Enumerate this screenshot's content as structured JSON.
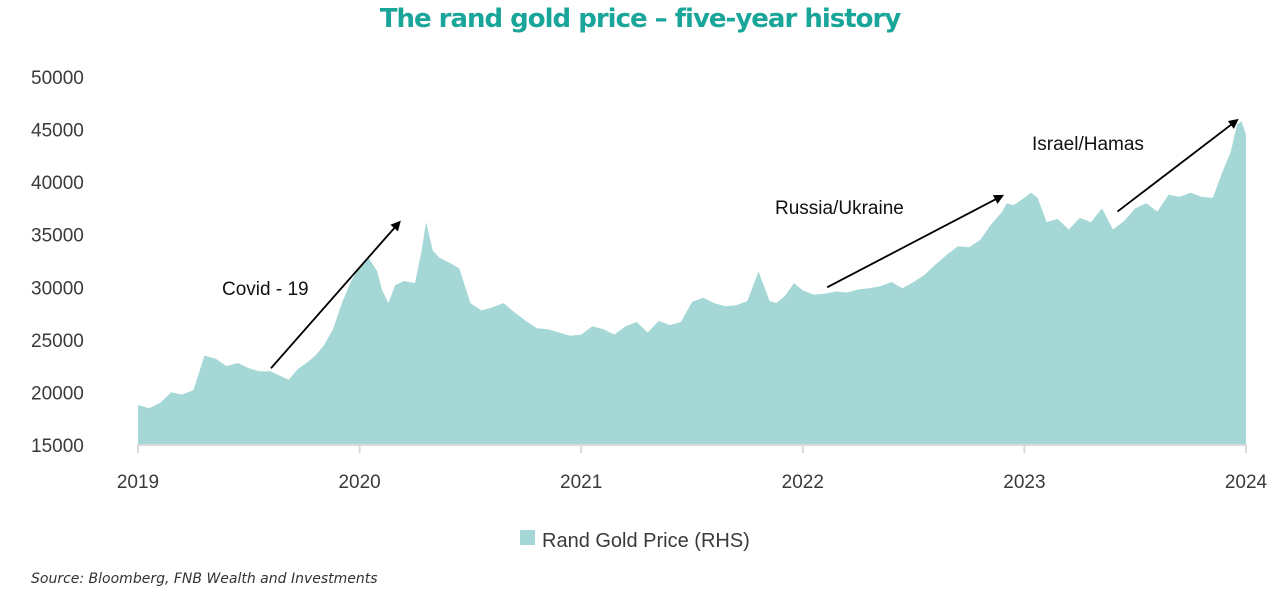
{
  "title": "The rand gold price – five-year history",
  "source": "Source: Bloomberg, FNB Wealth and Investments",
  "colors": {
    "title": "#1aa59a",
    "area": "#a4d7d6",
    "baseline": "#d9d9d9",
    "text": "#3a3a3a"
  },
  "chart_data": {
    "type": "area",
    "title": "The rand gold price – five-year history",
    "xlabel": "",
    "ylabel": "",
    "ylim": [
      15000,
      50000
    ],
    "xlim": [
      2019.0,
      2024.0
    ],
    "yticks": [
      "15000",
      "20000",
      "25000",
      "30000",
      "35000",
      "40000",
      "45000",
      "50000"
    ],
    "xticks": [
      "2019",
      "2020",
      "2021",
      "2022",
      "2023",
      "2024"
    ],
    "grid": false,
    "legend": "bottom-center",
    "series": [
      {
        "name": "Rand Gold Price (RHS)",
        "x": [
          2019.0,
          2019.05,
          2019.1,
          2019.15,
          2019.2,
          2019.25,
          2019.3,
          2019.35,
          2019.4,
          2019.45,
          2019.5,
          2019.55,
          2019.6,
          2019.65,
          2019.68,
          2019.72,
          2019.76,
          2019.8,
          2019.84,
          2019.88,
          2019.92,
          2019.96,
          2020.0,
          2020.04,
          2020.08,
          2020.1,
          2020.13,
          2020.16,
          2020.2,
          2020.25,
          2020.28,
          2020.3,
          2020.33,
          2020.36,
          2020.4,
          2020.45,
          2020.5,
          2020.55,
          2020.6,
          2020.65,
          2020.7,
          2020.75,
          2020.8,
          2020.85,
          2020.9,
          2020.95,
          2021.0,
          2021.05,
          2021.1,
          2021.15,
          2021.2,
          2021.25,
          2021.3,
          2021.35,
          2021.4,
          2021.45,
          2021.5,
          2021.55,
          2021.6,
          2021.65,
          2021.7,
          2021.75,
          2021.8,
          2021.85,
          2021.88,
          2021.92,
          2021.96,
          2022.0,
          2022.05,
          2022.1,
          2022.15,
          2022.2,
          2022.25,
          2022.3,
          2022.35,
          2022.4,
          2022.45,
          2022.5,
          2022.55,
          2022.6,
          2022.65,
          2022.7,
          2022.75,
          2022.8,
          2022.85,
          2022.9,
          2022.92,
          2022.95,
          2023.0,
          2023.03,
          2023.06,
          2023.1,
          2023.15,
          2023.2,
          2023.25,
          2023.3,
          2023.35,
          2023.4,
          2023.45,
          2023.5,
          2023.55,
          2023.6,
          2023.65,
          2023.7,
          2023.75,
          2023.8,
          2023.85,
          2023.88,
          2023.9,
          2023.93,
          2023.96,
          2023.98,
          2024.0
        ],
        "values": [
          18800,
          18500,
          19000,
          20000,
          19800,
          20200,
          23500,
          23200,
          22500,
          22800,
          22300,
          22000,
          22000,
          21500,
          21200,
          22200,
          22800,
          23500,
          24500,
          26000,
          28500,
          30500,
          32000,
          32800,
          31500,
          29800,
          28500,
          30200,
          30600,
          30400,
          33500,
          36200,
          33500,
          32800,
          32400,
          31800,
          28500,
          27800,
          28100,
          28500,
          27600,
          26800,
          26100,
          26000,
          25700,
          25400,
          25500,
          26300,
          26000,
          25500,
          26300,
          26700,
          25700,
          26800,
          26400,
          26700,
          28600,
          29000,
          28500,
          28200,
          28300,
          28700,
          31500,
          28700,
          28500,
          29200,
          30400,
          29700,
          29300,
          29400,
          29600,
          29500,
          29800,
          29900,
          30100,
          30500,
          29900,
          30500,
          31200,
          32200,
          33100,
          33900,
          33800,
          34500,
          36000,
          37200,
          38000,
          37800,
          38500,
          39000,
          38500,
          36200,
          36500,
          35500,
          36600,
          36200,
          37500,
          35500,
          36300,
          37500,
          38000,
          37200,
          38800,
          38600,
          39000,
          38600,
          38500,
          40200,
          41300,
          42800,
          45500,
          45800,
          44500
        ]
      }
    ],
    "annotations": [
      {
        "text": "Covid - 19",
        "from": [
          2019.6,
          22300
        ],
        "to": [
          2020.18,
          36200
        ]
      },
      {
        "text": "Russia/Ukraine",
        "from": [
          2022.11,
          30000
        ],
        "to": [
          2022.9,
          38700
        ]
      },
      {
        "text": "Israel/Hamas",
        "from": [
          2023.42,
          37200
        ],
        "to": [
          2023.96,
          45900
        ]
      }
    ]
  }
}
